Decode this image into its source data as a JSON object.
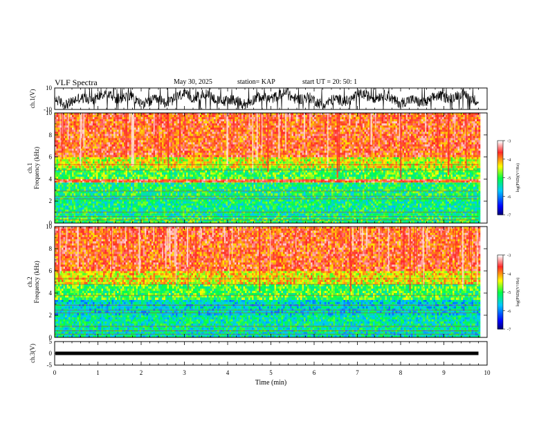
{
  "header": {
    "title": "VLF Spectra",
    "date": "May 30, 2025",
    "station_label": "station= KAP",
    "start_label": "start  UT  =   20: 50: 1"
  },
  "chart_data": [
    {
      "type": "line",
      "name": "ch1-waveform",
      "ylabel": "ch.1(V)",
      "ylim": [
        -10,
        10
      ],
      "yticks": [
        "10",
        "-10"
      ],
      "xlim": [
        0,
        10
      ],
      "data_end_min": 9.8
    },
    {
      "type": "heatmap",
      "name": "ch1-spectrogram",
      "ylabel": "ch.1 Frequency (kHz)",
      "ylim": [
        0,
        10
      ],
      "yticks": [
        "0",
        "2",
        "4",
        "6",
        "8",
        "10"
      ],
      "xlim": [
        0,
        10
      ],
      "data_end_min": 9.8,
      "colorbar": {
        "label": "log(PSD)(V²/Hz)",
        "range": [
          -7,
          -3
        ],
        "ticks": [
          "-3",
          "-4",
          "-5",
          "-6",
          "-7"
        ]
      },
      "bands_khz": [
        {
          "from": 0.0,
          "to": 0.5,
          "level": -5.0
        },
        {
          "from": 0.5,
          "to": 2.5,
          "level": -5.2
        },
        {
          "from": 2.5,
          "to": 3.7,
          "level": -5.1
        },
        {
          "from": 3.7,
          "to": 4.0,
          "level": -3.6
        },
        {
          "from": 4.0,
          "to": 5.0,
          "level": -4.9
        },
        {
          "from": 5.0,
          "to": 6.0,
          "level": -4.4
        },
        {
          "from": 6.0,
          "to": 10.0,
          "level": -3.7
        }
      ]
    },
    {
      "type": "heatmap",
      "name": "ch2-spectrogram",
      "ylabel": "ch.2 Frequency (kHz)",
      "ylim": [
        0,
        10
      ],
      "yticks": [
        "0",
        "2",
        "4",
        "6",
        "8",
        "10"
      ],
      "xlim": [
        0,
        10
      ],
      "data_end_min": 9.8,
      "colorbar": {
        "label": "log(PSD)(V²/Hz)",
        "range": [
          -7,
          -3
        ],
        "ticks": [
          "-3",
          "-4",
          "-5",
          "-6",
          "-7"
        ]
      },
      "bands_khz": [
        {
          "from": 0.0,
          "to": 0.5,
          "level": -5.4
        },
        {
          "from": 0.5,
          "to": 2.0,
          "level": -5.3
        },
        {
          "from": 2.0,
          "to": 3.4,
          "level": -5.5
        },
        {
          "from": 3.4,
          "to": 3.8,
          "level": -4.9
        },
        {
          "from": 3.8,
          "to": 4.8,
          "level": -4.9
        },
        {
          "from": 4.8,
          "to": 6.0,
          "level": -4.3
        },
        {
          "from": 6.0,
          "to": 10.0,
          "level": -3.7
        }
      ]
    },
    {
      "type": "line",
      "name": "ch3-waveform",
      "ylabel": "ch.3(V)",
      "ylim": [
        -5,
        5
      ],
      "yticks": [
        "5",
        "0",
        "-5"
      ],
      "xlim": [
        0,
        10
      ],
      "data_end_min": 9.8,
      "level_v": 0
    }
  ],
  "xaxis": {
    "label": "Time (min)",
    "ticks": [
      "0",
      "1",
      "2",
      "3",
      "4",
      "5",
      "6",
      "7",
      "8",
      "9",
      "10"
    ]
  }
}
